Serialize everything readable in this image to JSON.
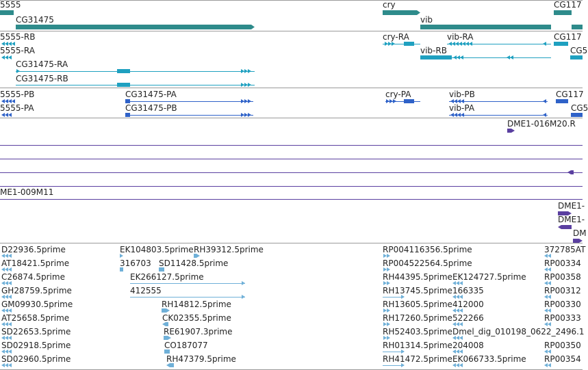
{
  "colors": {
    "gene": "#2e8b8b",
    "transcript": "#1fa0c0",
    "cds": "#2f62c8",
    "clone": "#5a3fa0",
    "est": "#6fb0d8",
    "separator": "#9a9a9a"
  },
  "tracks": {
    "genes": {
      "labels": [
        "5555",
        "CG31475",
        "cry",
        "vib",
        "CG117"
      ],
      "features": [
        {
          "kind": "block",
          "label_index": 0
        },
        {
          "kind": "arrow_right",
          "label_index": 1
        },
        {
          "kind": "arrow_right",
          "label_index": 2
        },
        {
          "kind": "block",
          "label_index": 3
        },
        {
          "kind": "block",
          "label_index": 4
        },
        {
          "kind": "block",
          "label_index": 4
        }
      ]
    },
    "transcripts": {
      "labels": [
        "5555-RB",
        "5555-RA",
        "CG31475-RA",
        "CG31475-RB",
        "cry-RA",
        "vib-RA",
        "vib-RB",
        "CG117",
        "CG5"
      ]
    },
    "proteins": {
      "labels": [
        "5555-PB",
        "5555-PA",
        "CG31475-PA",
        "CG31475-PB",
        "cry-PA",
        "vib-PB",
        "vib-PA",
        "CG117",
        "CG5"
      ]
    },
    "clones": {
      "labels": [
        "DME1-016M20.R",
        "ME1-009M11",
        "DME1-",
        "DME1-",
        "DM"
      ]
    },
    "ests": {
      "labels": [
        "D22936.5prime",
        "AT18421.5prime",
        "C26874.5prime",
        "GH28759.5prime",
        "GM09930.5prime",
        "AT25658.5prime",
        "SD22653.5prime",
        "SD02918.5prime",
        "SD02960.5prime",
        "EK104803.5prime",
        "RH39312.5prime",
        "316703",
        "SD11428.5prime",
        "EK266127.5prime",
        "412555",
        "RH14812.5prime",
        "CK02355.5prime",
        "RE61907.3prime",
        "CO187077",
        "RH47379.5prime",
        "RP004116356.5prime",
        "RP004522564.5prime",
        "RH44395.5prime",
        "EK124727.5prime",
        "RH13745.5prime",
        "166335",
        "RH13605.5prime",
        "412000",
        "RH17260.5prime",
        "522266",
        "RH52403.5prime",
        "Dmel_dig_010198_0622_2496.1",
        "RH01314.5prime",
        "204008",
        "RH41472.5prime",
        "EK066733.5prime",
        "372785AT",
        "RP00334",
        "RP00358",
        "RP00312",
        "RP00330",
        "RP00333",
        "RP00350",
        "RP00354"
      ]
    }
  }
}
